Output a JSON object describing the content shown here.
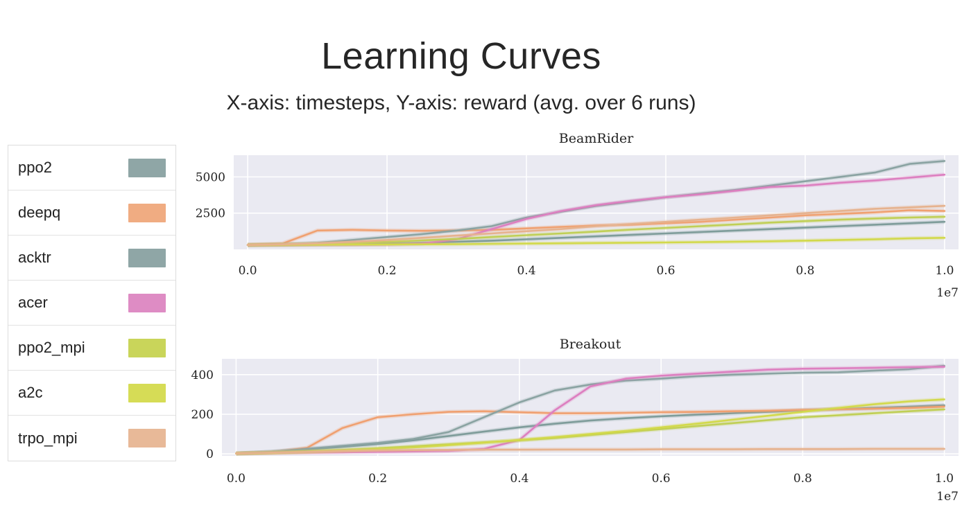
{
  "header": {
    "title": "Learning Curves",
    "subtitle": "X-axis: timesteps, Y-axis: reward (avg. over 6 runs)"
  },
  "legend": [
    {
      "label": "ppo2",
      "color": "#8fa6a6"
    },
    {
      "label": "deepq",
      "color": "#f0ac82"
    },
    {
      "label": "acktr",
      "color": "#8fa6a6"
    },
    {
      "label": "acer",
      "color": "#de8cc4"
    },
    {
      "label": "ppo2_mpi",
      "color": "#c9d55a"
    },
    {
      "label": "a2c",
      "color": "#d6dc56"
    },
    {
      "label": "trpo_mpi",
      "color": "#e8b998"
    }
  ],
  "chart_data": [
    {
      "type": "line",
      "title": "BeamRider",
      "xlabel": "",
      "ylabel": "",
      "x_multiplier_label": "1e7",
      "xlim": [
        -0.02,
        1.02
      ],
      "ylim": [
        0,
        6500
      ],
      "xticks": [
        0.0,
        0.2,
        0.4,
        0.6,
        0.8,
        1.0
      ],
      "xtick_labels": [
        "0.0",
        "0.2",
        "0.4",
        "0.6",
        "0.8",
        "1.0"
      ],
      "yticks": [
        2500,
        5000
      ],
      "ytick_labels": [
        "2500",
        "5000"
      ],
      "grid": true,
      "x": [
        0.0,
        0.05,
        0.1,
        0.15,
        0.2,
        0.25,
        0.3,
        0.35,
        0.4,
        0.45,
        0.5,
        0.55,
        0.6,
        0.65,
        0.7,
        0.75,
        0.8,
        0.85,
        0.9,
        0.95,
        1.0
      ],
      "series": [
        {
          "name": "ppo2",
          "color": "#7e9c9a",
          "values": [
            300,
            320,
            340,
            360,
            400,
            450,
            520,
            600,
            700,
            800,
            900,
            1000,
            1100,
            1200,
            1300,
            1400,
            1500,
            1600,
            1700,
            1800,
            1900
          ]
        },
        {
          "name": "deepq",
          "color": "#f0a070",
          "values": [
            320,
            400,
            1300,
            1350,
            1300,
            1280,
            1300,
            1350,
            1450,
            1550,
            1650,
            1700,
            1800,
            1900,
            2050,
            2200,
            2350,
            2450,
            2550,
            2700,
            2650
          ]
        },
        {
          "name": "acktr",
          "color": "#8aa3a2",
          "values": [
            300,
            350,
            450,
            650,
            850,
            1050,
            1300,
            1600,
            2200,
            2600,
            3000,
            3300,
            3600,
            3850,
            4100,
            4400,
            4700,
            5000,
            5300,
            5900,
            6100
          ]
        },
        {
          "name": "acer",
          "color": "#dd7fc0",
          "values": [
            300,
            300,
            310,
            320,
            330,
            400,
            700,
            1400,
            2100,
            2650,
            3050,
            3350,
            3600,
            3800,
            4050,
            4300,
            4400,
            4600,
            4750,
            4950,
            5150
          ]
        },
        {
          "name": "ppo2_mpi",
          "color": "#c0cf55",
          "values": [
            300,
            330,
            380,
            450,
            520,
            620,
            720,
            850,
            980,
            1100,
            1230,
            1360,
            1480,
            1600,
            1720,
            1850,
            1950,
            2050,
            2130,
            2200,
            2250
          ]
        },
        {
          "name": "a2c",
          "color": "#d2d94b",
          "values": [
            300,
            310,
            320,
            330,
            340,
            350,
            360,
            380,
            400,
            420,
            440,
            460,
            480,
            500,
            530,
            560,
            600,
            650,
            700,
            760,
            800
          ]
        },
        {
          "name": "trpo_mpi",
          "color": "#e6b28e",
          "values": [
            300,
            350,
            420,
            520,
            650,
            800,
            950,
            1100,
            1250,
            1400,
            1600,
            1750,
            1900,
            2050,
            2200,
            2350,
            2500,
            2650,
            2800,
            2900,
            3000
          ]
        }
      ]
    },
    {
      "type": "line",
      "title": "Breakout",
      "xlabel": "",
      "ylabel": "",
      "x_multiplier_label": "1e7",
      "xlim": [
        -0.02,
        1.02
      ],
      "ylim": [
        -10,
        480
      ],
      "xticks": [
        0.0,
        0.2,
        0.4,
        0.6,
        0.8,
        1.0
      ],
      "xtick_labels": [
        "0.0",
        "0.2",
        "0.4",
        "0.6",
        "0.8",
        "1.0"
      ],
      "yticks": [
        0,
        200,
        400
      ],
      "ytick_labels": [
        "0",
        "200",
        "400"
      ],
      "grid": true,
      "x": [
        0.0,
        0.05,
        0.1,
        0.15,
        0.2,
        0.25,
        0.3,
        0.35,
        0.4,
        0.45,
        0.5,
        0.55,
        0.6,
        0.65,
        0.7,
        0.75,
        0.8,
        0.85,
        0.9,
        0.95,
        1.0
      ],
      "series": [
        {
          "name": "ppo2",
          "color": "#7e9c9a",
          "values": [
            2,
            10,
            22,
            36,
            50,
            68,
            90,
            112,
            134,
            152,
            168,
            180,
            190,
            198,
            205,
            212,
            220,
            226,
            232,
            238,
            245
          ]
        },
        {
          "name": "deepq",
          "color": "#f0a070",
          "values": [
            2,
            8,
            30,
            130,
            185,
            200,
            212,
            215,
            210,
            205,
            205,
            207,
            210,
            212,
            215,
            218,
            222,
            225,
            228,
            232,
            238
          ]
        },
        {
          "name": "acktr",
          "color": "#8aa3a2",
          "values": [
            2,
            10,
            25,
            40,
            55,
            75,
            110,
            185,
            260,
            320,
            350,
            370,
            380,
            392,
            400,
            405,
            410,
            412,
            420,
            428,
            445
          ]
        },
        {
          "name": "acer",
          "color": "#dd7fc0",
          "values": [
            2,
            4,
            6,
            8,
            10,
            12,
            15,
            25,
            70,
            220,
            340,
            380,
            395,
            405,
            415,
            425,
            430,
            432,
            435,
            438,
            440
          ]
        },
        {
          "name": "ppo2_mpi",
          "color": "#c0cf55",
          "values": [
            2,
            6,
            12,
            20,
            28,
            38,
            48,
            58,
            68,
            80,
            95,
            110,
            125,
            140,
            155,
            170,
            185,
            195,
            205,
            215,
            225
          ]
        },
        {
          "name": "a2c",
          "color": "#d2d94b",
          "values": [
            2,
            5,
            10,
            16,
            24,
            32,
            44,
            56,
            70,
            84,
            100,
            116,
            134,
            152,
            172,
            192,
            212,
            232,
            250,
            265,
            275
          ]
        },
        {
          "name": "trpo_mpi",
          "color": "#e6b28e",
          "values": [
            2,
            6,
            10,
            14,
            17,
            19,
            20,
            21,
            21,
            22,
            22,
            22,
            23,
            23,
            23,
            24,
            24,
            24,
            25,
            25,
            25
          ]
        }
      ]
    }
  ]
}
